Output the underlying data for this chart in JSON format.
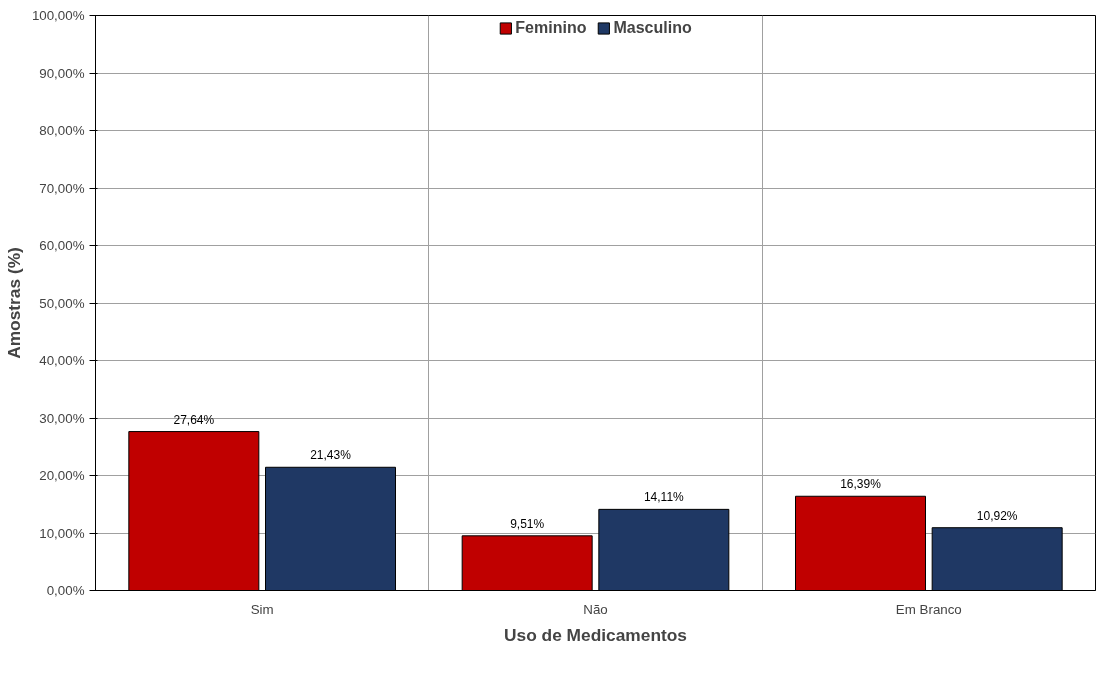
{
  "chart_data": {
    "type": "bar",
    "xlabel": "Uso de Medicamentos",
    "ylabel": "Amostras (%)",
    "categories": [
      "Sim",
      "Não",
      "Em Branco"
    ],
    "series": [
      {
        "name": "Feminino",
        "color": "#c00000",
        "values": [
          27.64,
          9.51,
          16.39
        ],
        "value_labels": [
          "27,64%",
          "9,51%",
          "16,39%"
        ]
      },
      {
        "name": "Masculino",
        "color": "#1f3864",
        "values": [
          21.43,
          14.11,
          10.92
        ],
        "value_labels": [
          "21,43%",
          "14,11%",
          "10,92%"
        ]
      }
    ],
    "ylim": [
      0,
      100
    ],
    "yticks": [
      {
        "value": 0,
        "label": "0,00%"
      },
      {
        "value": 10,
        "label": "10,00%"
      },
      {
        "value": 20,
        "label": "20,00%"
      },
      {
        "value": 30,
        "label": "30,00%"
      },
      {
        "value": 40,
        "label": "40,00%"
      },
      {
        "value": 50,
        "label": "50,00%"
      },
      {
        "value": 60,
        "label": "60,00%"
      },
      {
        "value": 70,
        "label": "70,00%"
      },
      {
        "value": 80,
        "label": "80,00%"
      },
      {
        "value": 90,
        "label": "90,00%"
      },
      {
        "value": 100,
        "label": "100,00%"
      }
    ],
    "grid": true,
    "legend": "top"
  }
}
